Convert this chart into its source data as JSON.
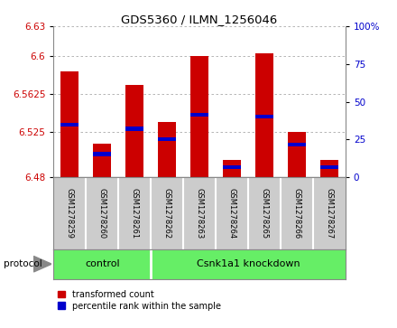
{
  "title": "GDS5360 / ILMN_1256046",
  "samples": [
    "GSM1278259",
    "GSM1278260",
    "GSM1278261",
    "GSM1278262",
    "GSM1278263",
    "GSM1278264",
    "GSM1278265",
    "GSM1278266",
    "GSM1278267"
  ],
  "red_values": [
    6.585,
    6.513,
    6.572,
    6.535,
    6.6,
    6.497,
    6.603,
    6.525,
    6.497
  ],
  "blue_values": [
    6.532,
    6.503,
    6.528,
    6.518,
    6.542,
    6.49,
    6.54,
    6.512,
    6.49
  ],
  "y_min": 6.48,
  "y_max": 6.63,
  "y_ticks_left": [
    6.48,
    6.525,
    6.5625,
    6.6,
    6.63
  ],
  "y_ticks_left_labels": [
    "6.48",
    "6.525",
    "6.5625",
    "6.6",
    "6.63"
  ],
  "y_ticks_right": [
    0,
    25,
    50,
    75,
    100
  ],
  "y_ticks_right_labels": [
    "0",
    "25",
    "50",
    "75",
    "100%"
  ],
  "bar_color": "#cc0000",
  "blue_color": "#0000cc",
  "grid_color": "#aaaaaa",
  "background_color": "#ffffff",
  "plot_bg_color": "#ffffff",
  "tick_label_color_left": "#cc0000",
  "tick_label_color_right": "#0000cc",
  "protocol_label": "protocol",
  "legend_red": "transformed count",
  "legend_blue": "percentile rank within the sample",
  "bar_bottom": 6.48,
  "sample_box_color": "#cccccc",
  "protocol_color": "#66ee66",
  "control_samples": [
    0,
    1,
    2
  ],
  "knockdown_samples": [
    3,
    4,
    5,
    6,
    7,
    8
  ]
}
